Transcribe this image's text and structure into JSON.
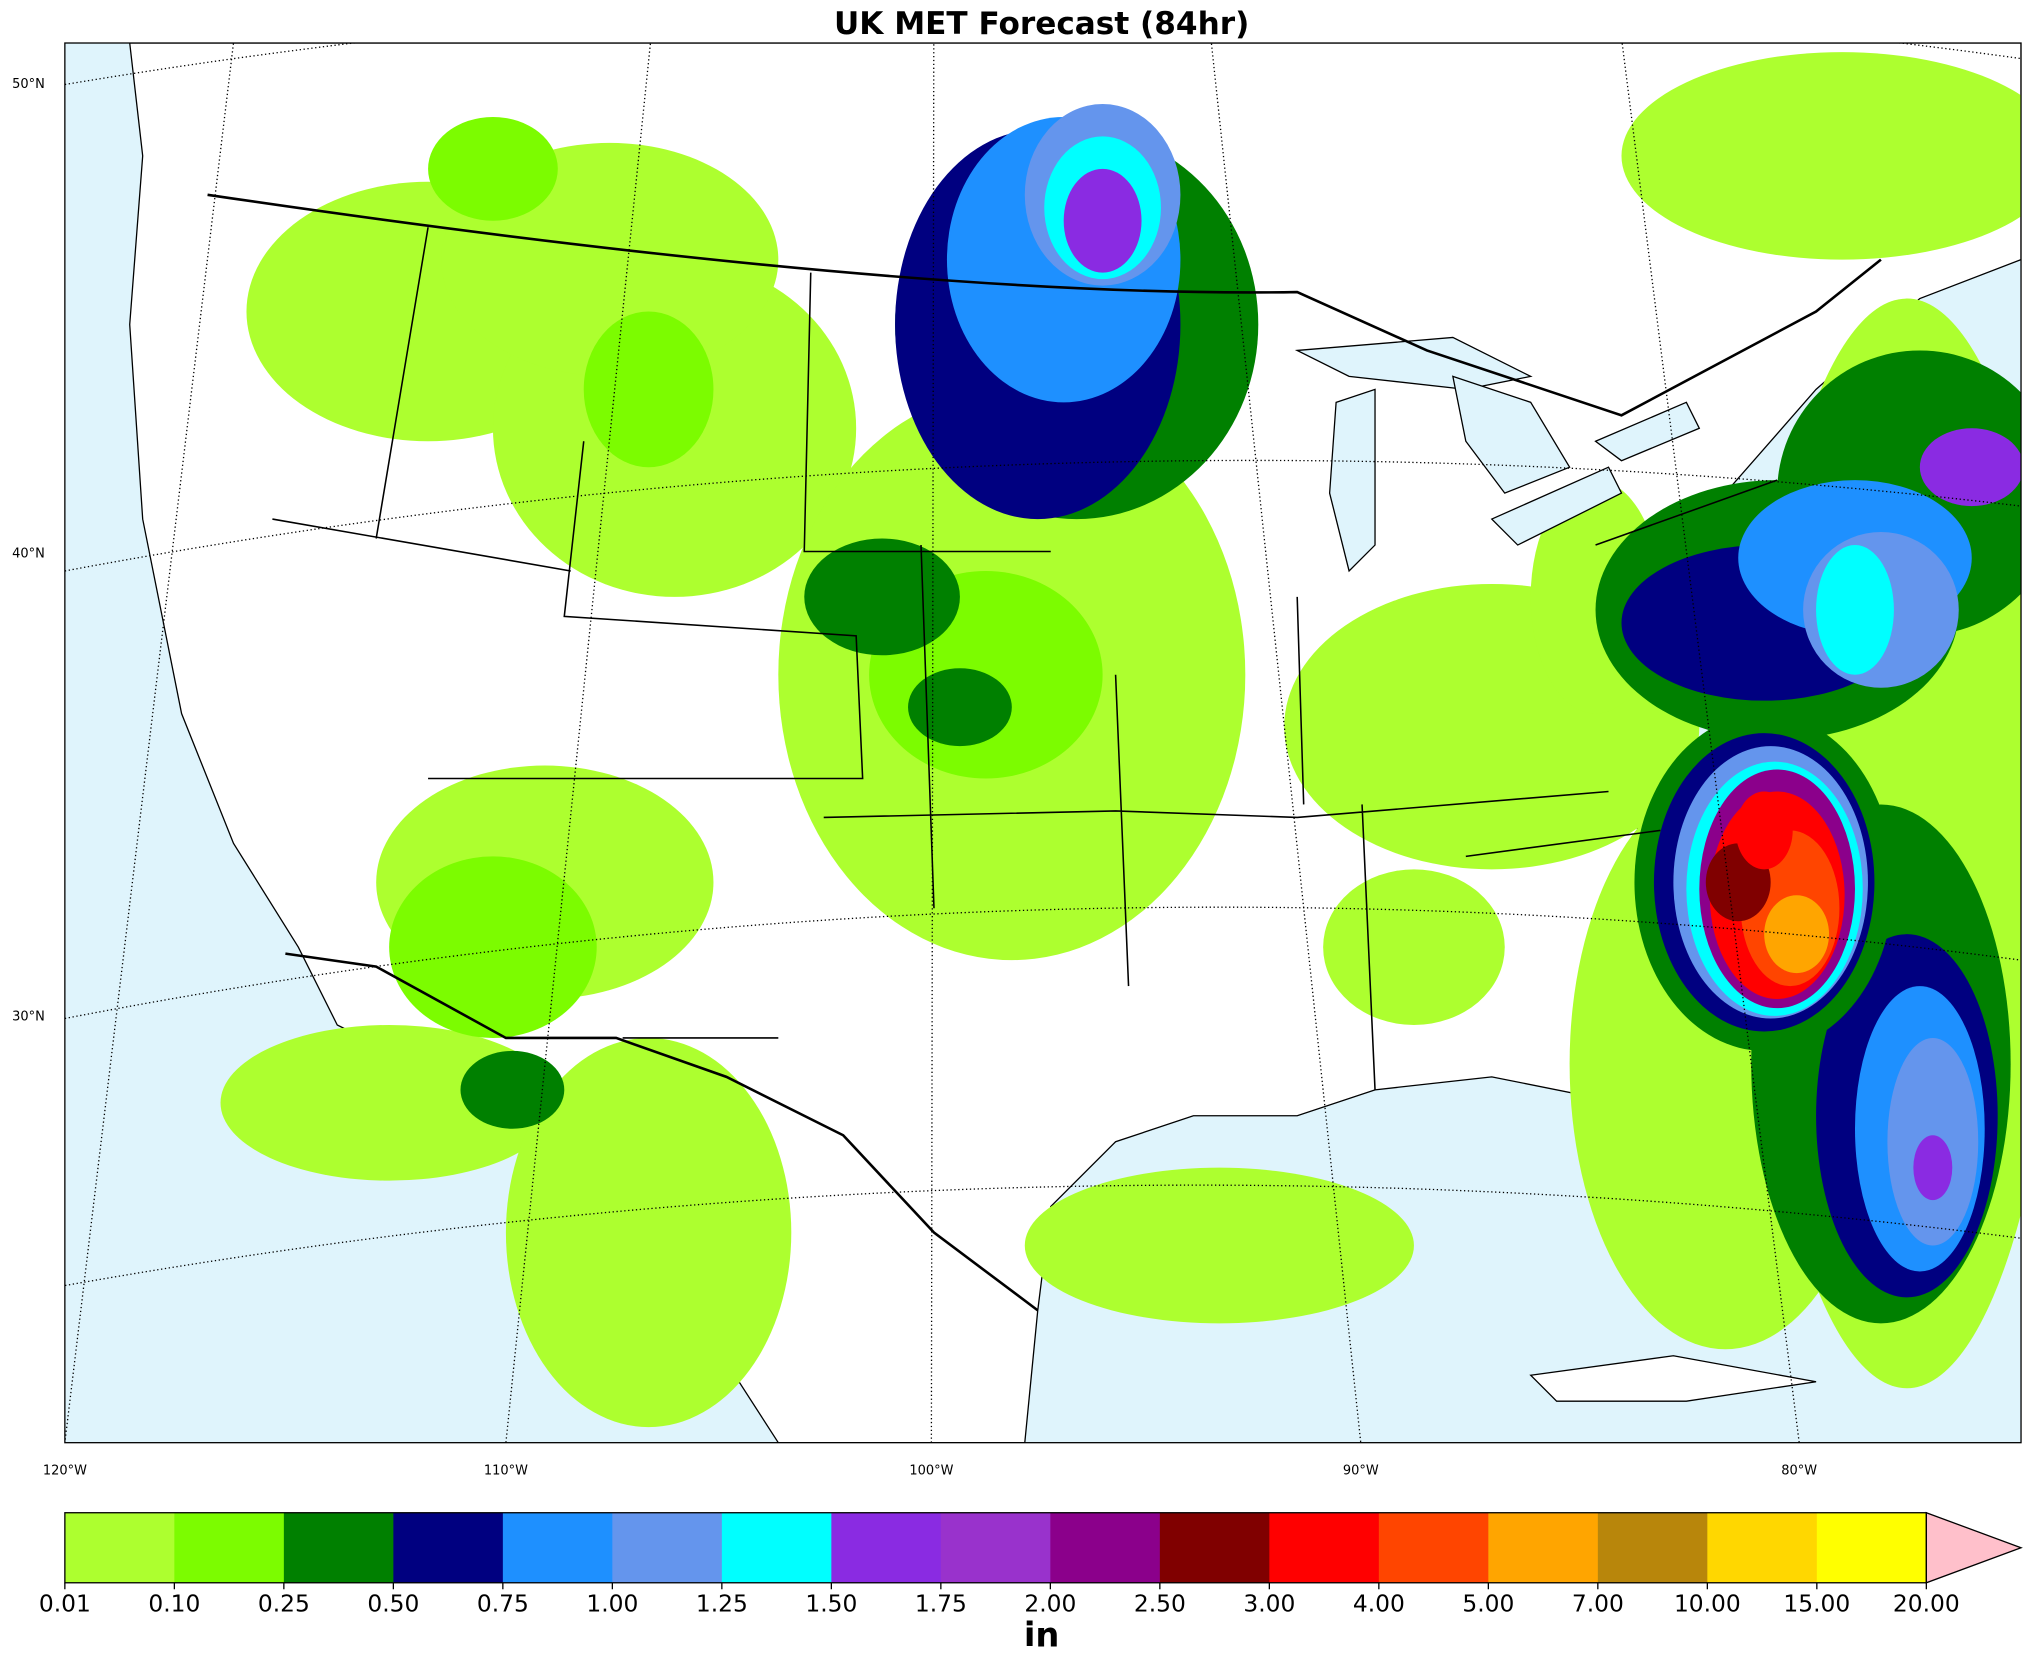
{
  "title": "UK MET Forecast (84hr)",
  "map": {
    "lat_labels": [
      "50°N",
      "40°N",
      "30°N"
    ],
    "lon_labels": [
      "120°W",
      "110°W",
      "100°W",
      "90°W",
      "80°W"
    ]
  },
  "colorbar": {
    "levels": [
      {
        "value": 0.01,
        "label": "0.01"
      },
      {
        "value": 0.1,
        "label": "0.10"
      },
      {
        "value": 0.25,
        "label": "0.25"
      },
      {
        "value": 0.5,
        "label": "0.50"
      },
      {
        "value": 0.75,
        "label": "0.75"
      },
      {
        "value": 1,
        "label": "1.00"
      },
      {
        "value": 1.25,
        "label": "1.25"
      },
      {
        "value": 1.5,
        "label": "1.50"
      },
      {
        "value": 1.75,
        "label": "1.75"
      },
      {
        "value": 2,
        "label": "2.00"
      },
      {
        "value": 2.5,
        "label": "2.50"
      },
      {
        "value": 3,
        "label": "3.00"
      },
      {
        "value": 4,
        "label": "4.00"
      },
      {
        "value": 5,
        "label": "5.00"
      },
      {
        "value": 7,
        "label": "7.00"
      },
      {
        "value": 10,
        "label": "10.00"
      },
      {
        "value": 15,
        "label": "15.00"
      },
      {
        "value": 20,
        "label": "20.00"
      }
    ],
    "colors": [
      "#adff2f",
      "#7cfc00",
      "#008000",
      "#000080",
      "#1e90ff",
      "#6495ed",
      "#00ffff",
      "#8a2be2",
      "#9932cc",
      "#8b008b",
      "#800000",
      "#ff0000",
      "#ff4500",
      "#ffa500",
      "#b8860b",
      "#ffd700",
      "#ffff00"
    ],
    "extend_color": "#ffc0cb",
    "unit": "in"
  }
}
